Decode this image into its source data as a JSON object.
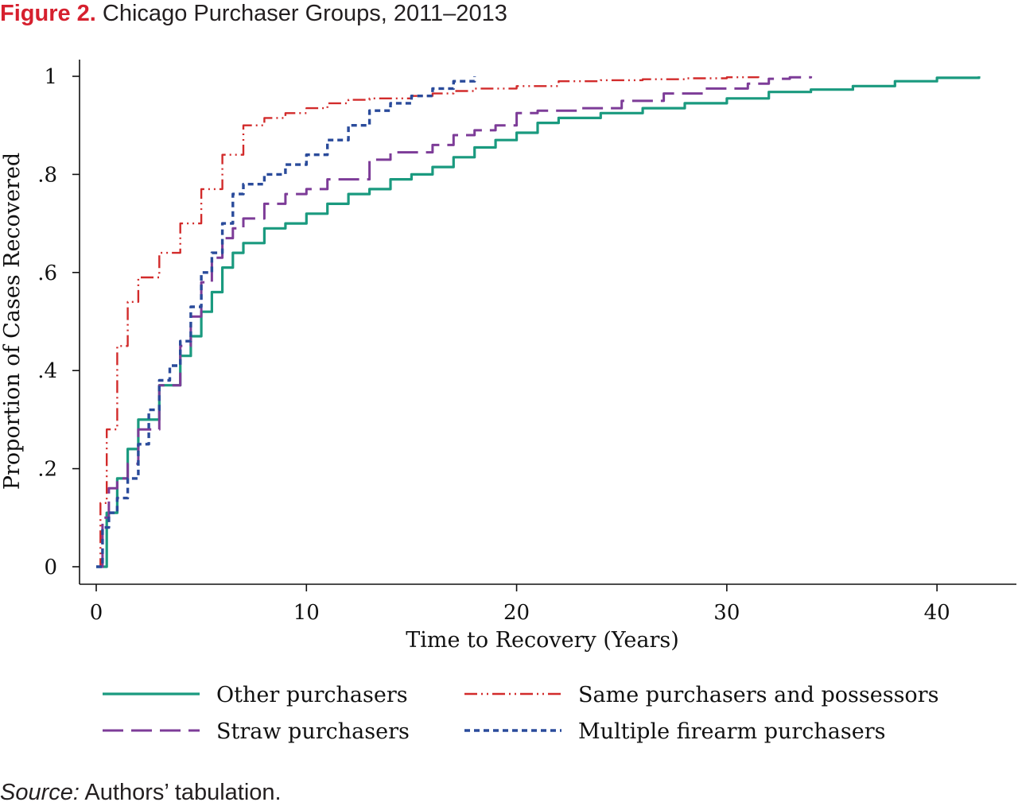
{
  "figure": {
    "label": "Figure 2.",
    "title": "Chicago Purchaser Groups, 2011–2013",
    "source_label": "Source:",
    "source_text": "Authors’ tabulation."
  },
  "colors": {
    "figure_label": "#d6202e",
    "other": "#1a9a7f",
    "straw": "#7d3c98",
    "same": "#d22b2b",
    "multiple": "#2a4b9b"
  },
  "chart_data": {
    "type": "line",
    "xlabel": "Time to Recovery (Years)",
    "ylabel": "Proportion of Cases Recovered",
    "xlim": [
      0,
      42
    ],
    "ylim": [
      0,
      1
    ],
    "xticks": [
      0,
      10,
      20,
      30,
      40
    ],
    "yticks": [
      0,
      0.2,
      0.4,
      0.6,
      0.8,
      1
    ],
    "xtick_labels": [
      "0",
      "10",
      "20",
      "30",
      "40"
    ],
    "ytick_labels": [
      "0",
      ".2",
      ".4",
      ".6",
      ".8",
      "1"
    ],
    "grid": false,
    "legend_position": "bottom",
    "series": [
      {
        "key": "other",
        "name": "Other purchasers",
        "dash": "solid",
        "x": [
          0,
          0.5,
          1,
          1.5,
          2,
          3,
          4,
          4.5,
          5,
          5.5,
          6,
          6.5,
          7,
          8,
          9,
          10,
          11,
          12,
          13,
          14,
          15,
          16,
          17,
          18,
          19,
          20,
          21,
          22,
          24,
          26,
          28,
          30,
          32,
          34,
          36,
          38,
          40,
          42
        ],
        "y": [
          0,
          0.11,
          0.18,
          0.24,
          0.3,
          0.37,
          0.43,
          0.47,
          0.52,
          0.56,
          0.61,
          0.64,
          0.66,
          0.69,
          0.7,
          0.72,
          0.74,
          0.76,
          0.77,
          0.79,
          0.8,
          0.815,
          0.835,
          0.855,
          0.87,
          0.885,
          0.905,
          0.915,
          0.925,
          0.935,
          0.945,
          0.955,
          0.968,
          0.973,
          0.98,
          0.99,
          0.997,
          1.0
        ]
      },
      {
        "key": "straw",
        "name": "Straw purchasers",
        "dash": "long-dash",
        "x": [
          0,
          0.3,
          0.6,
          1,
          1.5,
          2,
          3,
          4,
          4.5,
          5,
          5.5,
          6,
          6.5,
          7,
          8,
          9,
          10,
          11,
          12,
          13,
          14,
          16,
          17,
          18,
          19,
          20,
          21,
          23,
          25,
          27,
          29,
          31,
          32,
          33,
          34
        ],
        "y": [
          0,
          0.1,
          0.16,
          0.18,
          0.21,
          0.28,
          0.37,
          0.45,
          0.51,
          0.58,
          0.63,
          0.67,
          0.69,
          0.71,
          0.74,
          0.76,
          0.77,
          0.79,
          0.79,
          0.83,
          0.845,
          0.86,
          0.88,
          0.89,
          0.9,
          0.925,
          0.93,
          0.935,
          0.95,
          0.965,
          0.975,
          0.985,
          0.995,
          0.998,
          1.0
        ]
      },
      {
        "key": "same",
        "name": "Same purchasers and possessors",
        "dash": "dash-dot-dot",
        "x": [
          0,
          0.2,
          0.5,
          1,
          1.5,
          2,
          3,
          4,
          5,
          6,
          7,
          8,
          9,
          10,
          11,
          12,
          13,
          14,
          15,
          16,
          17,
          18,
          20,
          22,
          24,
          26,
          28,
          30,
          31.5
        ],
        "y": [
          0,
          0.13,
          0.28,
          0.45,
          0.54,
          0.59,
          0.64,
          0.7,
          0.77,
          0.84,
          0.9,
          0.915,
          0.925,
          0.935,
          0.945,
          0.952,
          0.955,
          0.955,
          0.96,
          0.965,
          0.97,
          0.975,
          0.98,
          0.99,
          0.992,
          0.994,
          0.996,
          0.998,
          1.0
        ]
      },
      {
        "key": "multiple",
        "name": "Multiple firearm purchasers",
        "dash": "short-dash",
        "x": [
          0,
          0.3,
          0.6,
          1,
          1.5,
          2,
          2.5,
          3,
          3.5,
          4,
          4.5,
          5,
          5.5,
          6,
          6.5,
          7,
          8,
          9,
          10,
          11,
          12,
          13,
          14,
          15,
          16,
          17,
          18
        ],
        "y": [
          0,
          0.08,
          0.11,
          0.14,
          0.18,
          0.25,
          0.32,
          0.38,
          0.41,
          0.46,
          0.53,
          0.6,
          0.64,
          0.7,
          0.76,
          0.78,
          0.8,
          0.82,
          0.84,
          0.87,
          0.9,
          0.93,
          0.945,
          0.96,
          0.975,
          0.99,
          1.0
        ]
      }
    ]
  }
}
